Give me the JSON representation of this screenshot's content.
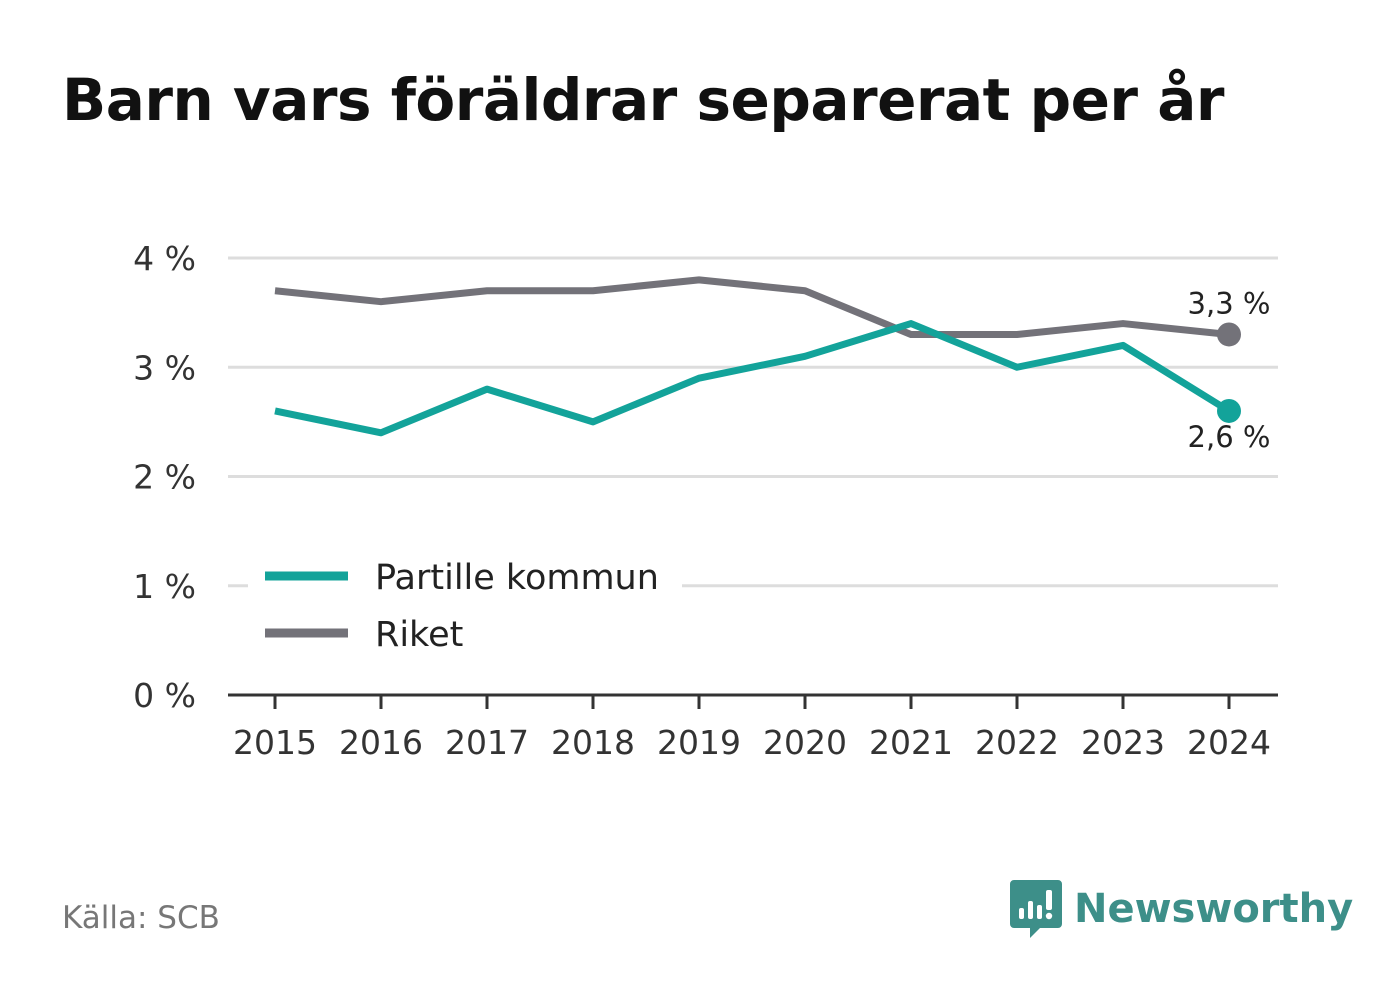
{
  "title": "Barn vars föräldrar separerat per år",
  "source": "Källa: SCB",
  "brand": {
    "name": "Newsworthy",
    "icon": "newsworthy-logo-icon",
    "color": "#3d8f89"
  },
  "chart_data": {
    "type": "line",
    "title": "Barn vars föräldrar separerat per år",
    "x": [
      "2015",
      "2016",
      "2017",
      "2018",
      "2019",
      "2020",
      "2021",
      "2022",
      "2023",
      "2024"
    ],
    "ylim": [
      0,
      4
    ],
    "yticks": [
      0,
      1,
      2,
      3,
      4
    ],
    "ytick_labels": [
      "0 %",
      "1 %",
      "2 %",
      "3 %",
      "4 %"
    ],
    "grid": true,
    "legend_position": "bottom-left",
    "series": [
      {
        "name": "Partille kommun",
        "color": "#13a39a",
        "values": [
          2.6,
          2.4,
          2.8,
          2.5,
          2.9,
          3.1,
          3.4,
          3.0,
          3.2,
          2.6
        ],
        "end_label": "2,6 %"
      },
      {
        "name": "Riket",
        "color": "#737279",
        "values": [
          3.7,
          3.6,
          3.7,
          3.7,
          3.8,
          3.7,
          3.3,
          3.3,
          3.4,
          3.3
        ],
        "end_label": "3,3 %"
      }
    ]
  }
}
